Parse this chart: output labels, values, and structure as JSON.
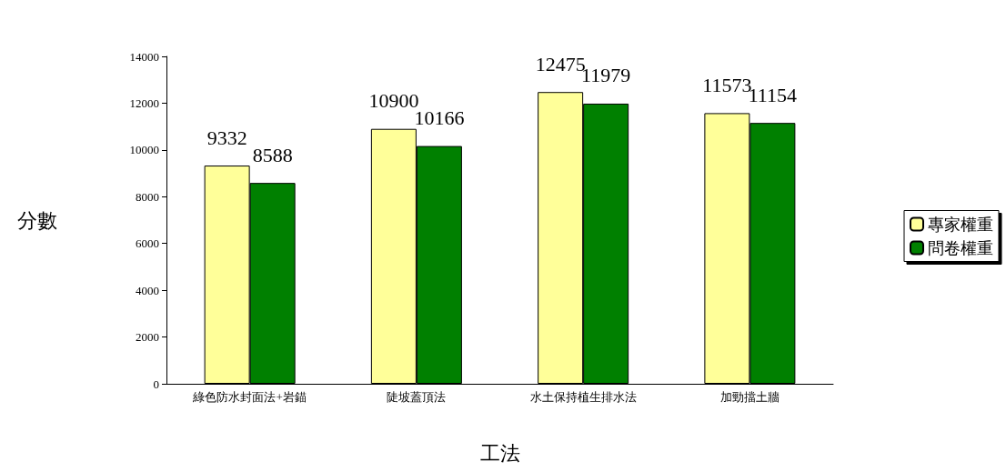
{
  "chart_data": {
    "type": "bar",
    "xlabel": "工法",
    "ylabel": "分數",
    "categories": [
      "綠色防水封面法+岩錨",
      "陡坡蓋頂法",
      "水土保持植生排水法",
      "加勁擋土牆"
    ],
    "series": [
      {
        "name": "專家權重",
        "color": "#ffff99",
        "values": [
          9332,
          10900,
          12475,
          11573
        ]
      },
      {
        "name": "問卷權重",
        "color": "#008000",
        "values": [
          8588,
          10166,
          11979,
          11154
        ]
      }
    ],
    "ylim": [
      0,
      14000
    ],
    "yticks": [
      0,
      2000,
      4000,
      6000,
      8000,
      10000,
      12000,
      14000
    ],
    "data_labels": true,
    "legend": "right",
    "grid": false
  }
}
